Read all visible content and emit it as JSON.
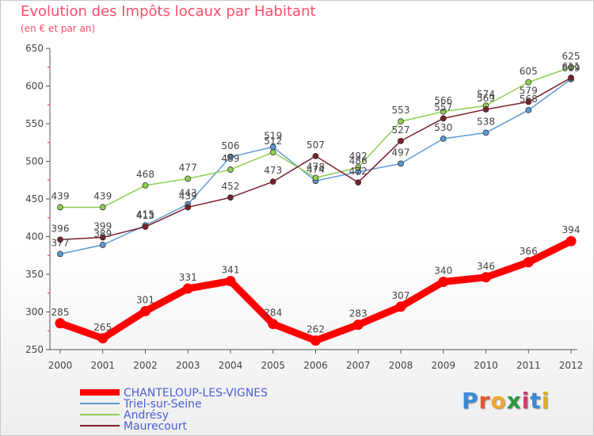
{
  "chart_data": {
    "type": "line",
    "title": "Evolution des Impôts locaux par Habitant",
    "subtitle": "(en € et par an)",
    "xlabel": "",
    "ylabel": "",
    "x": [
      "2000",
      "2001",
      "2002",
      "2003",
      "2004",
      "2005",
      "2006",
      "2007",
      "2008",
      "2009",
      "2010",
      "2011",
      "2012"
    ],
    "ylim": [
      250,
      650
    ],
    "yticks": [
      250,
      300,
      350,
      400,
      450,
      500,
      550,
      600,
      650
    ],
    "grid": false,
    "legend_position": "bottom-left",
    "series": [
      {
        "name": "CHANTELOUP-LES-VIGNES",
        "color": "#ff0000",
        "values": [
          285,
          265,
          301,
          331,
          341,
          284,
          262,
          283,
          307,
          340,
          346,
          366,
          394
        ]
      },
      {
        "name": "Triel-sur-Seine",
        "color": "#5b9bd5",
        "values": [
          377,
          389,
          415,
          443,
          506,
          519,
          474,
          486,
          497,
          530,
          538,
          568,
          609
        ]
      },
      {
        "name": "Andrésy",
        "color": "#8fd14f",
        "values": [
          439,
          439,
          468,
          477,
          489,
          512,
          478,
          492,
          553,
          566,
          574,
          605,
          625
        ]
      },
      {
        "name": "Maurecourt",
        "color": "#7b1f2b",
        "values": [
          396,
          399,
          413,
          439,
          452,
          473,
          507,
          472,
          527,
          557,
          569,
          579,
          611
        ]
      }
    ],
    "value_label_series": [
      {
        "name": "CHANTELOUP-LES-VIGNES",
        "labels": [
          "285",
          "265",
          "301",
          "331",
          "341",
          "284",
          "262",
          "283",
          "307",
          "340",
          "346",
          "366",
          "394"
        ]
      },
      {
        "name": "Triel-sur-Seine",
        "labels": [
          "377",
          "389",
          "415",
          "443",
          "506",
          "519",
          "474",
          "486",
          "497",
          "530",
          "538",
          "568",
          "609"
        ]
      },
      {
        "name": "Andrésy",
        "labels": [
          "439",
          "439",
          "468",
          "477",
          "489",
          "512",
          "478",
          "492",
          "553",
          "566",
          "574",
          "605",
          "625"
        ]
      },
      {
        "name": "Maurecourt",
        "labels": [
          "396",
          "399",
          "413",
          "439",
          "452",
          "473",
          "507",
          "472",
          "527",
          "557",
          "569",
          "579",
          "611"
        ]
      }
    ]
  },
  "logo": {
    "text": "Proxiti",
    "letters": [
      "P",
      "r",
      "o",
      "x",
      "i",
      "t",
      "i"
    ],
    "colors": [
      "#3a8ad6",
      "#e05a2a",
      "#f0a830",
      "#2a9a3a",
      "#d23a6a",
      "#3a8ad6",
      "#e0b020"
    ]
  }
}
